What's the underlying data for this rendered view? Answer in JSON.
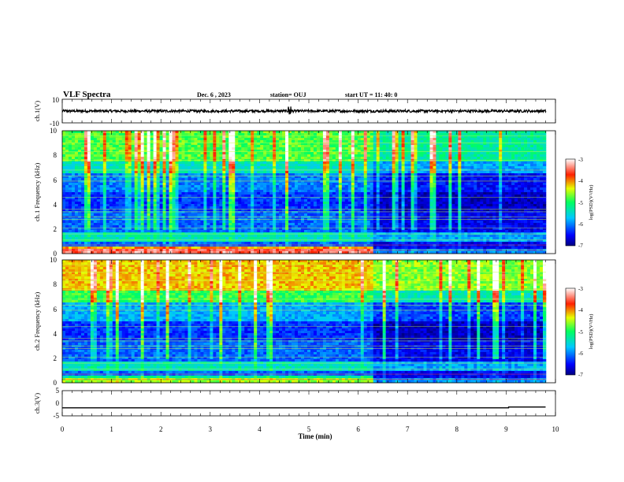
{
  "header": {
    "title": "VLF Spectra",
    "date": "Dec. 6 , 2023",
    "station": "station= OUJ",
    "start": "start UT = 11: 40: 0"
  },
  "chart_data": [
    {
      "type": "line",
      "id": "ch1-waveform",
      "ylabel": "ch.1(V)",
      "ylim": [
        -10,
        10
      ],
      "yticks": [
        "10",
        "-10"
      ],
      "xlim": [
        0,
        10
      ],
      "series_mean": 0,
      "color": "#000000"
    },
    {
      "type": "heatmap",
      "id": "ch1-spectrogram",
      "ylabel": "ch.1 Frequency (kHz)",
      "ylim": [
        0,
        10
      ],
      "yticks": [
        "0",
        "2",
        "4",
        "6",
        "8",
        "10"
      ],
      "xlim": [
        0,
        10
      ],
      "colorbar": {
        "label": "log(PSD)(V²/Hz)",
        "range": [
          -7,
          -3
        ],
        "ticks": [
          "-3",
          "-4",
          "-5",
          "-6",
          "-7"
        ]
      }
    },
    {
      "type": "heatmap",
      "id": "ch2-spectrogram",
      "ylabel": "ch.2 Frequency (kHz)",
      "ylim": [
        0,
        10
      ],
      "yticks": [
        "0",
        "2",
        "4",
        "6",
        "8",
        "10"
      ],
      "xlim": [
        0,
        10
      ],
      "colorbar": {
        "label": "log(PSD)(V²/Hz)",
        "range": [
          -7,
          -3
        ],
        "ticks": [
          "-3",
          "-4",
          "-5",
          "-6",
          "-7"
        ]
      }
    },
    {
      "type": "line",
      "id": "ch3-level",
      "ylabel": "ch.3(V)",
      "ylim": [
        -5,
        5
      ],
      "yticks": [
        "5",
        "0",
        "-5"
      ],
      "xlim": [
        0,
        10
      ],
      "x": [
        0,
        9.05,
        9.05,
        9.8
      ],
      "y": [
        -1.8,
        -1.8,
        -1.5,
        -1.5
      ],
      "color": "#000000"
    }
  ],
  "xaxis": {
    "label": "Time (min)",
    "ticks": [
      "0",
      "1",
      "2",
      "3",
      "4",
      "5",
      "6",
      "7",
      "8",
      "9",
      "10"
    ]
  }
}
